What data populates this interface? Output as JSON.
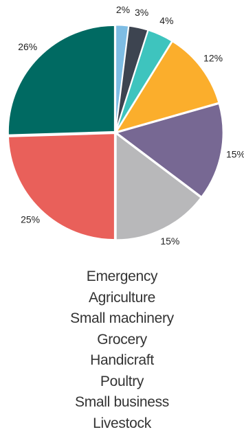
{
  "chart_data": {
    "type": "pie",
    "categories": [
      "Emergency",
      "Agriculture",
      "Small machinery",
      "Grocery",
      "Handicraft",
      "Poultry",
      "Small business",
      "Livestock"
    ],
    "values": [
      2,
      3,
      4,
      12,
      15,
      15,
      25,
      26
    ],
    "labels": [
      "2%",
      "3%",
      "4%",
      "12%",
      "15%",
      "15%",
      "25%",
      "26%"
    ],
    "colors": [
      "#7ebde4",
      "#3d4450",
      "#3ec4be",
      "#fbae2c",
      "#776893",
      "#b8b8ba",
      "#e9605a",
      "#006a62"
    ],
    "start": "12 o'clock",
    "direction": "clockwise",
    "legend": "below, centered"
  },
  "legend": {
    "items": [
      "Emergency",
      "Agriculture",
      "Small machinery",
      "Grocery",
      "Handicraft",
      "Poultry",
      "Small business",
      "Livestock"
    ]
  }
}
